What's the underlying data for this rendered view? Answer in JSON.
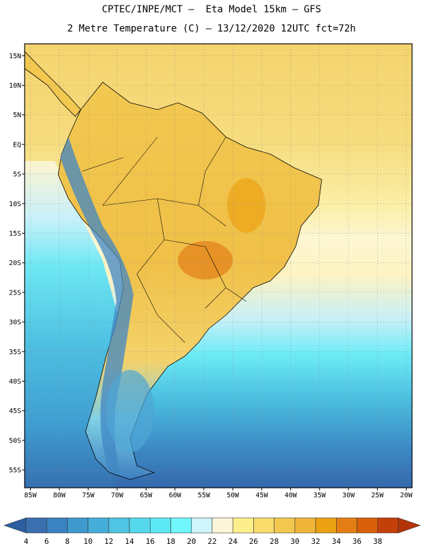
{
  "header": {
    "line1": "CPTEC/INPE/MCT –  Eta Model 15km – GFS",
    "line2": "2 Metre Temperature (C) – 13/12/2020 12UTC fct=72h"
  },
  "map": {
    "lat_labels": [
      "15N",
      "10N",
      "5N",
      "EQ",
      "5S",
      "10S",
      "15S",
      "20S",
      "25S",
      "30S",
      "35S",
      "40S",
      "45S",
      "50S",
      "55S"
    ],
    "lon_labels": [
      "85W",
      "80W",
      "75W",
      "70W",
      "65W",
      "60W",
      "55W",
      "50W",
      "45W",
      "40W",
      "35W",
      "30W",
      "25W",
      "20W"
    ],
    "lon_range": [
      -86,
      -19
    ],
    "lat_range": [
      17,
      -58
    ],
    "ocean_color_north": "#f4d36c",
    "land_color": "#f2c85a",
    "hot_color": "#e48a20",
    "andes_color": "#3f86c4",
    "ocean_cold": "#3a76b8"
  },
  "colorbar": {
    "levels": [
      "4",
      "6",
      "8",
      "10",
      "12",
      "14",
      "16",
      "18",
      "20",
      "22",
      "24",
      "26",
      "28",
      "30",
      "32",
      "34",
      "36",
      "38"
    ],
    "colors": [
      "#3a6fb0",
      "#3a82c0",
      "#3f99cd",
      "#45aed8",
      "#4fc4e3",
      "#55d8ec",
      "#5ce9f3",
      "#6ff7fb",
      "#cff5fc",
      "#fdf5d8",
      "#fdf08c",
      "#f8dc6c",
      "#f2c850",
      "#efb63a",
      "#eda214",
      "#e47e14",
      "#d9600a",
      "#c4400a"
    ],
    "low_color": "#2c5ea0",
    "high_color": "#b23408"
  }
}
